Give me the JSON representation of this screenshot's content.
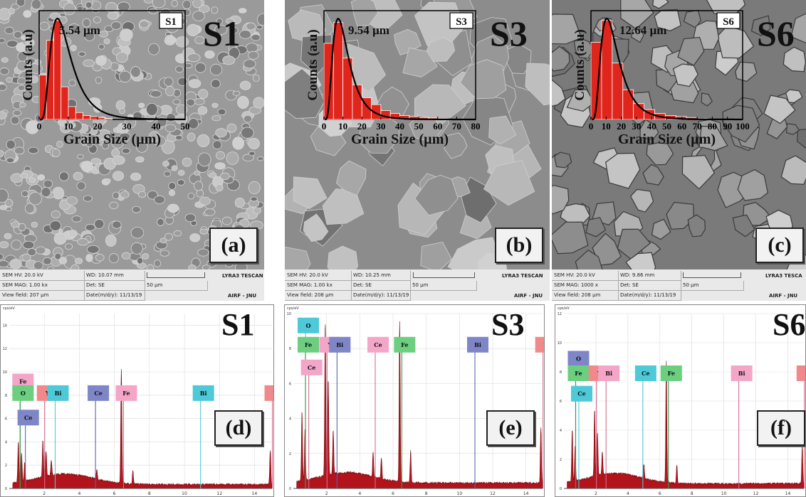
{
  "sem_panels": [
    {
      "sample": "S1",
      "letter": "(a)",
      "inset_tag": "S1",
      "mean": "5.54 µm",
      "info": {
        "hv": "SEM HV: 20.0 kV",
        "wd": "WD: 10.07 mm",
        "mag": "SEM MAG: 1.00 kx",
        "det": "Det: SE",
        "scale": "50 µm",
        "field": "View field: 207 µm",
        "date": "Date(m/d/y): 11/13/19",
        "brand": "LYRA3 TESCAN",
        "lab": "AIRF - JNU"
      }
    },
    {
      "sample": "S3",
      "letter": "(b)",
      "inset_tag": "S3",
      "mean": "9.54 µm",
      "info": {
        "hv": "SEM HV: 20.0 kV",
        "wd": "WD: 10.25 mm",
        "mag": "SEM MAG: 1.00 kx",
        "det": "Det: SE",
        "scale": "50 µm",
        "field": "View field: 208 µm",
        "date": "Date(m/d/y): 11/13/19",
        "brand": "LYRA3 TESCAN",
        "lab": "AIRF - JNU"
      }
    },
    {
      "sample": "S6",
      "letter": "(c)",
      "inset_tag": "S6",
      "mean": "12.64 µm",
      "info": {
        "hv": "SEM HV: 20.0 kV",
        "wd": "WD: 9.86 mm",
        "mag": "SEM MAG: 1000 x",
        "det": "Det: SE",
        "scale": "50 µm",
        "field": "View field: 208 µm",
        "date": "Date(m/d/y): 11/13/19",
        "brand": "LYRA3 TESCA",
        "lab": "AIRF - JNU"
      }
    }
  ],
  "eds_panels": [
    {
      "sample": "S1",
      "letter": "(d)",
      "unit": "cps/eV"
    },
    {
      "sample": "S3",
      "letter": "(e)",
      "unit": "cps/eV"
    },
    {
      "sample": "S6",
      "letter": "(f)",
      "unit": "cps/eV"
    }
  ],
  "colors": {
    "bar": "#e0261c",
    "fit": "#000000",
    "spectrum": "#b3141c",
    "pink": "#f4a6c8",
    "green": "#6ccf7f",
    "blue": "#7e86c8",
    "cyan": "#4ec9d8",
    "salmon": "#f08a8a"
  },
  "chart_data": [
    {
      "type": "bar",
      "xlabel": "Grain Size (µm)",
      "ylabel": "Counts (a.u)",
      "xlim": [
        0,
        50
      ],
      "xticks": [
        0,
        10,
        20,
        30,
        40,
        50
      ],
      "bin_width": 2.5,
      "x": [
        1.25,
        3.75,
        6.25,
        8.75,
        11.25,
        13.75,
        16.25,
        18.75,
        21.25,
        23.75
      ],
      "values": [
        0.45,
        0.8,
        1.0,
        0.33,
        0.13,
        0.07,
        0.04,
        0.03,
        0.02,
        0.01
      ],
      "ylim": [
        0,
        1.1
      ]
    },
    {
      "type": "bar",
      "xlabel": "Grain Size (µm)",
      "ylabel": "Counts (a.u)",
      "xlim": [
        0,
        80
      ],
      "xticks": [
        0,
        10,
        20,
        30,
        40,
        50,
        60,
        70,
        80
      ],
      "bin_width": 5,
      "x": [
        2.5,
        7.5,
        12.5,
        17.5,
        22.5,
        27.5,
        32.5,
        37.5,
        42.5,
        47.5,
        52.5,
        57.5,
        62.5
      ],
      "values": [
        0.77,
        0.98,
        0.62,
        0.35,
        0.22,
        0.15,
        0.09,
        0.06,
        0.04,
        0.03,
        0.02,
        0.015,
        0.01
      ],
      "ylim": [
        0,
        1.1
      ]
    },
    {
      "type": "bar",
      "xlabel": "Grain Size (µm)",
      "ylabel": "Counts (a.u)",
      "xlim": [
        0,
        100
      ],
      "xticks": [
        0,
        10,
        20,
        30,
        40,
        50,
        60,
        70,
        80,
        90,
        100
      ],
      "bin_width": 7,
      "x": [
        3.5,
        10.5,
        17.5,
        24.5,
        31.5,
        38.5,
        45.5,
        52.5,
        59.5,
        66.5,
        73.5
      ],
      "values": [
        0.78,
        1.0,
        0.57,
        0.3,
        0.16,
        0.1,
        0.06,
        0.04,
        0.03,
        0.02,
        0.01
      ],
      "ylim": [
        0,
        1.1
      ]
    },
    {
      "type": "line",
      "xlabel": "",
      "ylabel": "cps/eV",
      "xlim": [
        0,
        15
      ],
      "ylim": [
        0,
        15
      ],
      "xticks": [
        2,
        4,
        6,
        8,
        10,
        12,
        14
      ],
      "yticks": [
        0,
        2,
        4,
        6,
        8,
        10,
        12,
        14
      ],
      "peaks": [
        {
          "x": 0.52,
          "y": 3.5
        },
        {
          "x": 0.7,
          "y": 2.5
        },
        {
          "x": 0.88,
          "y": 1.6
        },
        {
          "x": 1.92,
          "y": 3.2
        },
        {
          "x": 2.1,
          "y": 2.2
        },
        {
          "x": 2.4,
          "y": 1.3
        },
        {
          "x": 5.0,
          "y": 0.8
        },
        {
          "x": 6.4,
          "y": 9.8
        },
        {
          "x": 7.06,
          "y": 1.1
        },
        {
          "x": 14.9,
          "y": 3.0
        }
      ],
      "labels": [
        {
          "text": "Fe",
          "x": 0.5,
          "y": 9.3,
          "color": "pink",
          "line": "#3a9a52"
        },
        {
          "text": "O",
          "x": 0.5,
          "y": 8.3,
          "color": "green",
          "line": "#3a9a52"
        },
        {
          "text": "Y",
          "x": 1.9,
          "y": 8.3,
          "color": "salmon",
          "line": "#d86b8b"
        },
        {
          "text": "Bi",
          "x": 2.5,
          "y": 8.3,
          "color": "cyan",
          "line": "#4ec9d8"
        },
        {
          "text": "Ce",
          "x": 4.8,
          "y": 8.3,
          "color": "blue",
          "line": "#5a63b0"
        },
        {
          "text": "Fe",
          "x": 6.4,
          "y": 8.3,
          "color": "pink",
          "line": "#d86b8b"
        },
        {
          "text": "Bi",
          "x": 10.8,
          "y": 8.3,
          "color": "cyan",
          "line": "#4ec9d8"
        },
        {
          "text": "Y",
          "x": 14.9,
          "y": 8.3,
          "color": "salmon",
          "line": "#d86b8b"
        },
        {
          "text": "Ce",
          "x": 0.8,
          "y": 6.2,
          "color": "blue",
          "line": "#5a63b0"
        }
      ]
    },
    {
      "type": "line",
      "xlabel": "",
      "ylabel": "cps/eV",
      "xlim": [
        0,
        15
      ],
      "ylim": [
        0,
        10
      ],
      "xticks": [
        2,
        4,
        6,
        8,
        10,
        12,
        14
      ],
      "yticks": [
        0,
        2,
        4,
        6,
        8,
        10
      ],
      "peaks": [
        {
          "x": 0.52,
          "y": 4.0
        },
        {
          "x": 0.7,
          "y": 3.0
        },
        {
          "x": 1.92,
          "y": 8.8
        },
        {
          "x": 2.1,
          "y": 5.5
        },
        {
          "x": 2.4,
          "y": 2.5
        },
        {
          "x": 4.8,
          "y": 1.4
        },
        {
          "x": 5.3,
          "y": 1.2
        },
        {
          "x": 6.4,
          "y": 9.2
        },
        {
          "x": 7.06,
          "y": 1.8
        },
        {
          "x": 14.9,
          "y": 3.2
        }
      ],
      "labels": [
        {
          "text": "O",
          "x": 0.6,
          "y": 9.4,
          "color": "cyan",
          "line": "#4ec9d8"
        },
        {
          "text": "Fe",
          "x": 0.6,
          "y": 8.3,
          "color": "green",
          "line": "#3a9a52"
        },
        {
          "text": "Y",
          "x": 1.9,
          "y": 8.3,
          "color": "pink",
          "line": "#d86b8b"
        },
        {
          "text": "Bi",
          "x": 2.5,
          "y": 8.3,
          "color": "blue",
          "line": "#5a63b0"
        },
        {
          "text": "Ce",
          "x": 4.8,
          "y": 8.3,
          "color": "pink",
          "line": "#d86b8b"
        },
        {
          "text": "Fe",
          "x": 6.4,
          "y": 8.3,
          "color": "green",
          "line": "#3a9a52"
        },
        {
          "text": "Bi",
          "x": 10.8,
          "y": 8.3,
          "color": "blue",
          "line": "#5a63b0"
        },
        {
          "text": "Y",
          "x": 14.9,
          "y": 8.3,
          "color": "salmon",
          "line": "#d86b8b"
        },
        {
          "text": "Ce",
          "x": 0.8,
          "y": 7.0,
          "color": "pink",
          "line": "#d86b8b"
        }
      ]
    },
    {
      "type": "line",
      "xlabel": "",
      "ylabel": "cps/eV",
      "xlim": [
        0,
        15
      ],
      "ylim": [
        0,
        12
      ],
      "xticks": [
        2,
        4,
        6,
        8,
        10,
        12,
        14
      ],
      "yticks": [
        0,
        2,
        4,
        6,
        8,
        10,
        12
      ],
      "peaks": [
        {
          "x": 0.52,
          "y": 3.6
        },
        {
          "x": 0.7,
          "y": 2.4
        },
        {
          "x": 1.92,
          "y": 4.6
        },
        {
          "x": 2.1,
          "y": 3.0
        },
        {
          "x": 2.4,
          "y": 1.6
        },
        {
          "x": 5.0,
          "y": 1.0
        },
        {
          "x": 6.4,
          "y": 8.4
        },
        {
          "x": 7.06,
          "y": 1.3
        },
        {
          "x": 14.9,
          "y": 2.6
        }
      ],
      "labels": [
        {
          "text": "O",
          "x": 0.6,
          "y": 9.0,
          "color": "blue",
          "line": "#5a63b0"
        },
        {
          "text": "Fe",
          "x": 0.6,
          "y": 8.0,
          "color": "green",
          "line": "#3a9a52"
        },
        {
          "text": "Y",
          "x": 1.9,
          "y": 8.0,
          "color": "salmon",
          "line": "#d86b8b"
        },
        {
          "text": "Bi",
          "x": 2.5,
          "y": 8.0,
          "color": "pink",
          "line": "#d86b8b"
        },
        {
          "text": "Ce",
          "x": 4.8,
          "y": 8.0,
          "color": "cyan",
          "line": "#4ec9d8"
        },
        {
          "text": "Fe",
          "x": 6.4,
          "y": 8.0,
          "color": "green",
          "line": "#3a9a52"
        },
        {
          "text": "Bi",
          "x": 10.8,
          "y": 8.0,
          "color": "pink",
          "line": "#d86b8b"
        },
        {
          "text": "Y",
          "x": 14.9,
          "y": 8.0,
          "color": "salmon",
          "line": "#d86b8b"
        },
        {
          "text": "Ce",
          "x": 0.8,
          "y": 6.6,
          "color": "cyan",
          "line": "#4ec9d8"
        }
      ]
    }
  ]
}
